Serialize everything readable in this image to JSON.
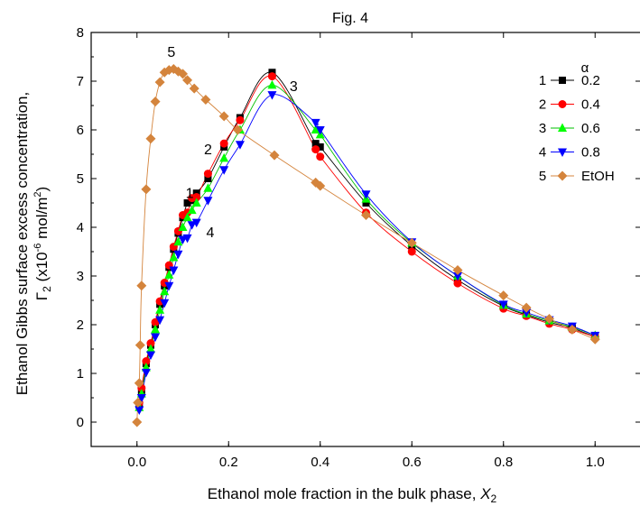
{
  "chart_data": {
    "type": "scatter",
    "title": "Fig. 4",
    "xlabel_main": "Ethanol mole fraction in the bulk phase, ",
    "xlabel_var": "X",
    "xlabel_sub": "2",
    "ylabel_line1": "Ethanol Gibbs surface excess concentration,",
    "ylabel_symbol": "Γ",
    "ylabel_sub": "2",
    "ylabel_unit_a": " (x10",
    "ylabel_exp": "-6",
    "ylabel_unit_b": " mol/m",
    "ylabel_unit_exp": "2",
    "ylabel_unit_c": ")",
    "xlim": [
      -0.1,
      1.1
    ],
    "ylim": [
      -0.5,
      8
    ],
    "xticks": [
      0.0,
      0.2,
      0.4,
      0.6,
      0.8,
      1.0
    ],
    "xtick_labels": [
      "0.0",
      "0.2",
      "0.4",
      "0.6",
      "0.8",
      "1.0"
    ],
    "yticks": [
      0,
      1,
      2,
      3,
      4,
      5,
      6,
      7,
      8
    ],
    "ytick_labels": [
      "0",
      "1",
      "2",
      "3",
      "4",
      "5",
      "6",
      "7",
      "8"
    ],
    "legend": {
      "title": "α",
      "placement": "top-right",
      "entries": [
        {
          "index": "1",
          "label": "0.2"
        },
        {
          "index": "2",
          "label": "0.4"
        },
        {
          "index": "3",
          "label": "0.6"
        },
        {
          "index": "4",
          "label": "0.8"
        },
        {
          "index": "5",
          "label": "EtOH"
        }
      ]
    },
    "annotations": [
      {
        "text": "5",
        "x": 0.075,
        "y": 7.5
      },
      {
        "text": "3",
        "x": 0.342,
        "y": 6.8
      },
      {
        "text": "2",
        "x": 0.155,
        "y": 5.5
      },
      {
        "text": "1",
        "x": 0.115,
        "y": 4.6
      },
      {
        "text": "4",
        "x": 0.16,
        "y": 3.8
      }
    ],
    "series": [
      {
        "name": "0.2",
        "marker": "square",
        "color": "#000000",
        "line_color": "#000000",
        "x": [
          0.005,
          0.01,
          0.02,
          0.03,
          0.04,
          0.05,
          0.06,
          0.07,
          0.08,
          0.09,
          0.1,
          0.11,
          0.12,
          0.13,
          0.155,
          0.19,
          0.225,
          0.295,
          0.39,
          0.4,
          0.5,
          0.6,
          0.7,
          0.8,
          0.85,
          0.9,
          0.95,
          1.0
        ],
        "y": [
          0.35,
          0.65,
          1.2,
          1.58,
          2.0,
          2.42,
          2.8,
          3.18,
          3.55,
          3.88,
          4.2,
          4.5,
          4.55,
          4.7,
          5.0,
          5.65,
          6.25,
          7.18,
          5.72,
          5.65,
          4.5,
          3.62,
          2.92,
          2.38,
          2.2,
          2.05,
          1.93,
          1.75
        ]
      },
      {
        "name": "0.4",
        "marker": "circle",
        "color": "#ff0000",
        "line_color": "#ff0000",
        "x": [
          0.005,
          0.01,
          0.02,
          0.03,
          0.04,
          0.05,
          0.06,
          0.07,
          0.08,
          0.09,
          0.1,
          0.11,
          0.12,
          0.13,
          0.155,
          0.19,
          0.225,
          0.295,
          0.39,
          0.4,
          0.5,
          0.6,
          0.7,
          0.8,
          0.85,
          0.9,
          0.95,
          1.0
        ],
        "y": [
          0.4,
          0.7,
          1.25,
          1.62,
          2.05,
          2.48,
          2.86,
          3.22,
          3.6,
          3.92,
          4.25,
          4.3,
          4.6,
          4.62,
          5.1,
          5.72,
          6.2,
          7.1,
          5.6,
          5.45,
          4.3,
          3.5,
          2.85,
          2.33,
          2.18,
          2.02,
          1.9,
          1.75
        ]
      },
      {
        "name": "0.6",
        "marker": "triangle-up",
        "color": "#00ff00",
        "line_color": "#00c000",
        "x": [
          0.005,
          0.01,
          0.02,
          0.03,
          0.04,
          0.05,
          0.06,
          0.07,
          0.08,
          0.09,
          0.1,
          0.11,
          0.12,
          0.13,
          0.155,
          0.19,
          0.225,
          0.295,
          0.39,
          0.4,
          0.5,
          0.6,
          0.7,
          0.8,
          0.85,
          0.9,
          0.95,
          1.0
        ],
        "y": [
          0.3,
          0.58,
          1.12,
          1.5,
          1.9,
          2.3,
          2.68,
          3.02,
          3.38,
          3.7,
          4.0,
          4.2,
          4.35,
          4.5,
          4.8,
          5.42,
          6.0,
          6.92,
          6.0,
          5.9,
          4.58,
          3.68,
          3.0,
          2.4,
          2.22,
          2.08,
          1.95,
          1.78
        ]
      },
      {
        "name": "0.8",
        "marker": "triangle-down",
        "color": "#0000ff",
        "line_color": "#0000ff",
        "x": [
          0.005,
          0.01,
          0.02,
          0.03,
          0.04,
          0.05,
          0.06,
          0.07,
          0.08,
          0.09,
          0.1,
          0.11,
          0.12,
          0.13,
          0.155,
          0.19,
          0.225,
          0.295,
          0.39,
          0.4,
          0.5,
          0.6,
          0.7,
          0.8,
          0.85,
          0.9,
          0.95,
          1.0
        ],
        "y": [
          0.25,
          0.5,
          1.02,
          1.38,
          1.75,
          2.1,
          2.45,
          2.8,
          3.12,
          3.45,
          3.75,
          3.78,
          4.05,
          4.1,
          4.55,
          5.18,
          5.7,
          6.72,
          6.15,
          6.0,
          4.68,
          3.7,
          3.0,
          2.42,
          2.25,
          2.1,
          1.97,
          1.78
        ]
      },
      {
        "name": "EtOH",
        "marker": "diamond",
        "color": "#d4843c",
        "line_color": "#d4843c",
        "x": [
          0.0,
          0.002,
          0.005,
          0.007,
          0.01,
          0.02,
          0.03,
          0.04,
          0.05,
          0.06,
          0.07,
          0.08,
          0.09,
          0.1,
          0.11,
          0.125,
          0.15,
          0.19,
          0.22,
          0.3,
          0.39,
          0.4,
          0.5,
          0.6,
          0.7,
          0.8,
          0.85,
          0.9,
          0.95,
          1.0
        ],
        "y": [
          0.0,
          0.4,
          0.8,
          1.58,
          2.8,
          4.78,
          5.82,
          6.58,
          6.98,
          7.18,
          7.23,
          7.25,
          7.2,
          7.15,
          7.02,
          6.85,
          6.62,
          6.28,
          6.0,
          5.48,
          4.92,
          4.85,
          4.25,
          3.68,
          3.12,
          2.6,
          2.35,
          2.12,
          1.9,
          1.7
        ]
      }
    ]
  }
}
